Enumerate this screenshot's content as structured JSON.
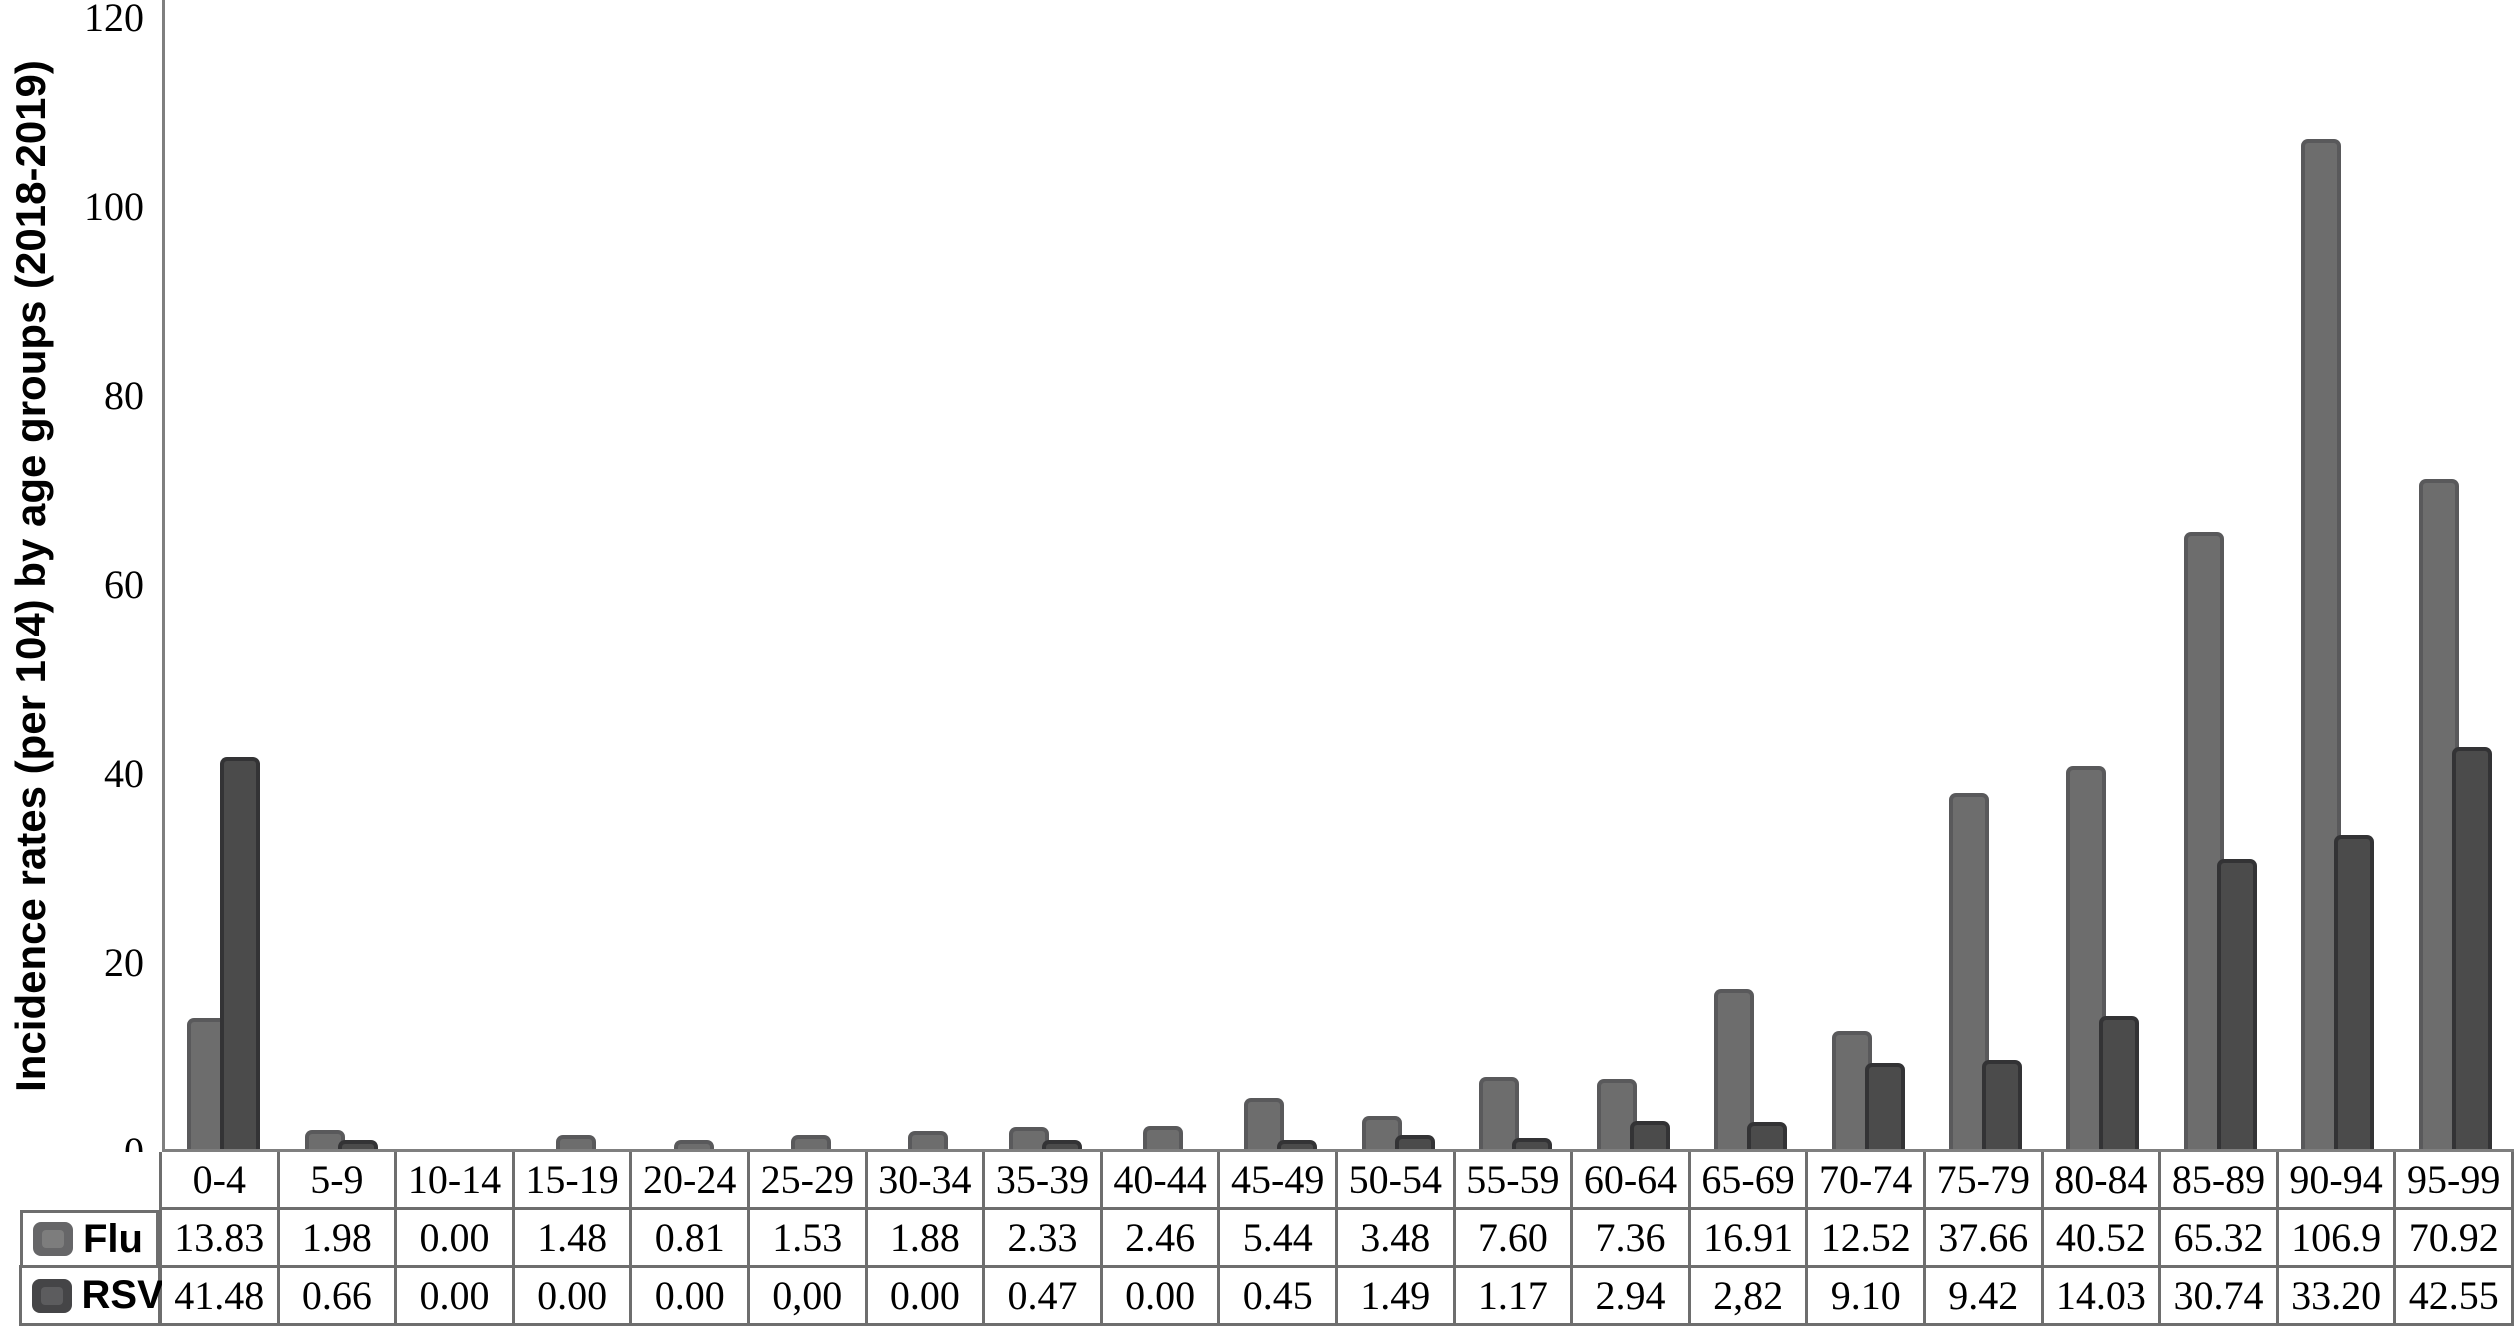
{
  "chart_data": {
    "type": "bar",
    "ylabel": "Incidence rates (per 104) by age groups (2018-2019)",
    "xlabel": "",
    "ylim": [
      0,
      120
    ],
    "yticks": [
      0,
      20,
      40,
      60,
      80,
      100,
      120
    ],
    "grid": false,
    "legend_position": "table-left-column",
    "categories": [
      "0-4",
      "5-9",
      "10-14",
      "15-19",
      "20-24",
      "25-29",
      "30-34",
      "35-39",
      "40-44",
      "45-49",
      "50-54",
      "55-59",
      "60-64",
      "65-69",
      "70-74",
      "75-79",
      "80-84",
      "85-89",
      "90-94",
      "95-99"
    ],
    "series": [
      {
        "name": "Flu",
        "color": "#6d6d6d",
        "border_color": "#59595b",
        "values": [
          13.83,
          1.98,
          0.0,
          1.48,
          0.81,
          1.53,
          1.88,
          2.33,
          2.46,
          5.44,
          3.48,
          7.6,
          7.36,
          16.91,
          12.52,
          37.66,
          40.52,
          65.32,
          106.9,
          70.92
        ],
        "labels": [
          "13.83",
          "1.98",
          "0.00",
          "1.48",
          "0.81",
          "1.53",
          "1.88",
          "2.33",
          "2.46",
          "5.44",
          "3.48",
          "7.60",
          "7.36",
          "16.91",
          "12.52",
          "37.66",
          "40.52",
          "65.32",
          "106.9",
          "70.92"
        ]
      },
      {
        "name": "RSV",
        "color": "#4b4b4b",
        "border_color": "#333335",
        "values": [
          41.48,
          0.66,
          0.0,
          0.0,
          0.0,
          0.0,
          0.0,
          0.47,
          0.0,
          0.45,
          1.49,
          1.17,
          2.94,
          2.82,
          9.1,
          9.42,
          14.03,
          30.74,
          33.2,
          42.55
        ],
        "labels": [
          "41.48",
          "0.66",
          "0.00",
          "0.00",
          "0.00",
          "0,00",
          "0.00",
          "0.47",
          "0.00",
          "0.45",
          "1.49",
          "1.17",
          "2.94",
          "2,82",
          "9.10",
          "9.42",
          "14.03",
          "30.74",
          "33.20",
          "42.55"
        ]
      }
    ]
  },
  "colors": {
    "background": "#ffffff",
    "axis": "#7f7f7f",
    "table_border": "#6e6e6e",
    "text": "#000000"
  }
}
